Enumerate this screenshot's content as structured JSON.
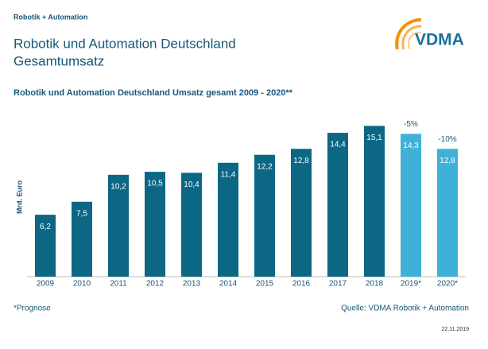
{
  "header": {
    "section": "Robotik + Automation",
    "title": "Robotik und Automation Deutschland",
    "subtitle": "Gesamtumsatz",
    "logo": "VDMA"
  },
  "chart_data": {
    "type": "bar",
    "title": "Robotik und Automation Deutschland Umsatz gesamt 2009 - 2020**",
    "ylabel": "Mrd. Euro",
    "categories": [
      "2009",
      "2010",
      "2011",
      "2012",
      "2013",
      "2014",
      "2015",
      "2016",
      "2017",
      "2018",
      "2019*",
      "2020*"
    ],
    "values": [
      6.2,
      7.5,
      10.2,
      10.5,
      10.4,
      11.4,
      12.2,
      12.8,
      14.4,
      15.1,
      14.3,
      12.8
    ],
    "value_labels": [
      "6,2",
      "7,5",
      "10,2",
      "10,5",
      "10,4",
      "11,4",
      "12,2",
      "12,8",
      "14,4",
      "15,1",
      "14,3",
      "12,8"
    ],
    "colors": [
      "#0b6784",
      "#0b6784",
      "#0b6784",
      "#0b6784",
      "#0b6784",
      "#0b6784",
      "#0b6784",
      "#0b6784",
      "#0b6784",
      "#0b6784",
      "#3fb1d9",
      "#3fb1d9"
    ],
    "annotations": [
      {
        "category": "2019*",
        "text": "-5%"
      },
      {
        "category": "2020*",
        "text": "-10%"
      }
    ],
    "ylim": [
      0,
      16
    ]
  },
  "footer": {
    "note": "*Prognose",
    "source": "Quelle: VDMA Robotik + Automation",
    "date": "22.11.2019"
  }
}
